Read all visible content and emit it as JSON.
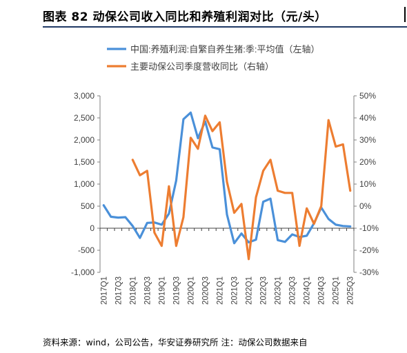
{
  "title": "图表 82  动保公司收入同比和养殖利润对比（元/头）",
  "source": "资料来源：wind，公司公告，华安证券研究所 注：动保公司数据来自",
  "chart_data": {
    "type": "line",
    "categories": [
      "2017Q1",
      "2017Q2",
      "2017Q3",
      "2017Q4",
      "2018Q1",
      "2018Q2",
      "2018Q3",
      "2018Q4",
      "2019Q1",
      "2019Q2",
      "2019Q3",
      "2019Q4",
      "2020Q1",
      "2020Q2",
      "2020Q3",
      "2020Q4",
      "2021Q1",
      "2021Q2",
      "2021Q3",
      "2021Q4",
      "2022Q1",
      "2022Q2",
      "2022Q3",
      "2022Q4",
      "2023Q1",
      "2023Q2",
      "2023Q3",
      "2023Q4",
      "2024Q1",
      "2024Q2",
      "2024Q3",
      "2024Q4",
      "2025Q1",
      "2025Q2",
      "2025Q3"
    ],
    "tick_labels": [
      "2017Q1",
      "2017Q3",
      "2018Q1",
      "2018Q3",
      "2019Q1",
      "2019Q3",
      "2020Q1",
      "2020Q3",
      "2021Q1",
      "2021Q3",
      "2022Q1",
      "2022Q3",
      "2023Q1",
      "2023Q3",
      "2024Q1",
      "2024Q3",
      "2025Q1",
      "2025Q3"
    ],
    "series": [
      {
        "name": "中国:养殖利润:自繁自养生猪:季:平均值（左轴）",
        "axis": "left",
        "color": "#4a90d9",
        "values": [
          520,
          260,
          240,
          250,
          50,
          -220,
          120,
          130,
          80,
          330,
          1080,
          2470,
          2620,
          2040,
          2420,
          1830,
          1790,
          310,
          -340,
          -120,
          -320,
          -260,
          600,
          670,
          -270,
          -310,
          -140,
          -200,
          -170,
          110,
          470,
          210,
          80,
          50,
          40
        ]
      },
      {
        "name": "主要动保公司季度营收同比（右轴）",
        "axis": "right",
        "color": "#ed7d31",
        "values": [
          null,
          null,
          null,
          null,
          21,
          14,
          16,
          -12,
          -18,
          9,
          -18,
          -5,
          31,
          26,
          41,
          34,
          38,
          11,
          -3,
          1,
          -24,
          4,
          16,
          21,
          7,
          6,
          6,
          -18,
          -1,
          -8,
          0,
          39,
          27,
          28,
          7
        ]
      }
    ],
    "yaxis_left": {
      "min": -1000,
      "max": 3000,
      "step": 500,
      "tick_labels": [
        "-1,000",
        "-500",
        "0",
        "500",
        "1,000",
        "1,500",
        "2,000",
        "2,500",
        "3,000"
      ]
    },
    "yaxis_right": {
      "min": -30,
      "max": 50,
      "step": 10,
      "tick_labels": [
        "-30%",
        "-20%",
        "-10%",
        "0%",
        "10%",
        "20%",
        "30%",
        "40%",
        "50%"
      ]
    },
    "grid": false,
    "legend_placement": "top-left"
  }
}
